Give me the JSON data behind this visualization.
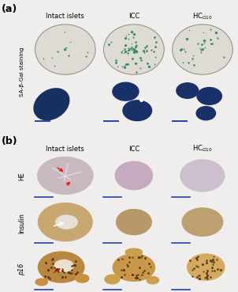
{
  "panel_a_label": "(a)",
  "panel_b_label": "(b)",
  "col_labels": [
    "Intact islets",
    "ICC",
    "HC$_{G10}$"
  ],
  "row_a_label": "SA-β-Gal staining",
  "row_b_labels": [
    "HE",
    "Insulin",
    "p16"
  ],
  "fig_bg": "#f0eeec",
  "pa_row1_bg": "#e8e4de",
  "pa_row2_bgs": [
    "#c8c0b0",
    "#b0b8b8",
    "#b8bcc0"
  ],
  "pb_bgs": [
    [
      "#d8d0cc",
      "#d4cccc",
      "#d8d4d0"
    ],
    [
      "#ccc0b0",
      "#c8bca8",
      "#ccc0b0"
    ],
    [
      "#e0d8c8",
      "#ddd4c0",
      "#e4ddd0"
    ]
  ],
  "circle_fill": "#dedad4",
  "circle_edge": "#909088",
  "dot_color": "#3a8a6a",
  "islet_dark_blue": "#1a3060",
  "tissue_bg_a2": [
    "#c0b8a8",
    "#a8b0b0",
    "#b0b8b8"
  ],
  "he_islet_colors": [
    "#c0a8b8",
    "#c8aac0",
    "#ccc0cc"
  ],
  "ins_islet_colors": [
    "#c8a870",
    "#b89868",
    "#bca070"
  ],
  "p16_bg_colors": [
    "#e8d8c0",
    "#e0d0b8",
    "#e8dcc8"
  ],
  "p16_islet_colors": [
    "#a07030",
    "#987028",
    "#a87830"
  ],
  "scale_bar_color": "#2244aa",
  "grid_color": "#7070b0"
}
